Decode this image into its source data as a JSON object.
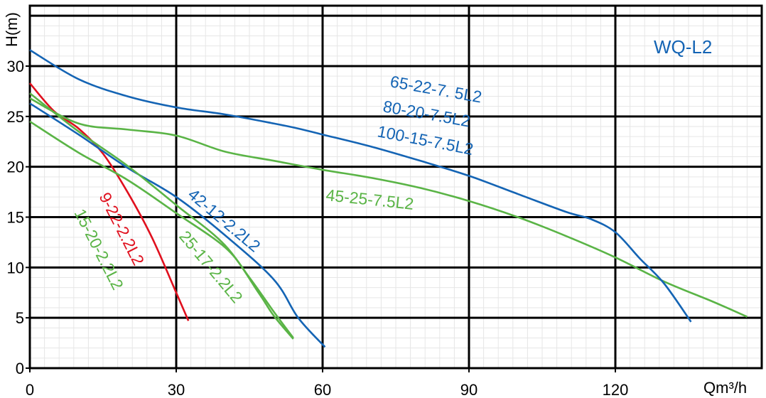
{
  "chart_data": {
    "type": "line",
    "title": "WQ-L2",
    "xlabel": "Qm³/h",
    "ylabel": "H(m)",
    "xlim": [
      0,
      150
    ],
    "ylim": [
      0,
      36
    ],
    "grid": true,
    "x_ticks": [
      "0",
      "30",
      "60",
      "90",
      "120"
    ],
    "y_ticks": [
      "0",
      "5",
      "10",
      "15",
      "20",
      "25",
      "30"
    ],
    "colors": {
      "blue": "#1464b4",
      "green": "#5ab446",
      "red": "#e0101e"
    },
    "series": [
      {
        "name": "9-22-2.2L2",
        "color": "#e0101e",
        "x": [
          0,
          5,
          10,
          15,
          20,
          25,
          30,
          32.5
        ],
        "y": [
          28.3,
          25.5,
          23.8,
          21.3,
          17.5,
          13.0,
          7.5,
          4.7
        ]
      },
      {
        "name": "15-20-2.2L2",
        "color": "#5ab446",
        "x": [
          0,
          10,
          20,
          30,
          40,
          45,
          50,
          54
        ],
        "y": [
          24.5,
          21.4,
          18.7,
          15.4,
          12.0,
          9.0,
          5.6,
          3.0
        ]
      },
      {
        "name": "42-12-2.2L2",
        "color": "#1464b4",
        "x": [
          0,
          10,
          20,
          30,
          40,
          50,
          55,
          60.5
        ],
        "y": [
          26.3,
          23.2,
          19.9,
          17.0,
          13.2,
          8.8,
          5.0,
          2.1
        ]
      },
      {
        "name": "25-17-2.2L2",
        "color": "#5ab446",
        "x": [
          0,
          10,
          20,
          30,
          40,
          47,
          50,
          54
        ],
        "y": [
          27.3,
          23.5,
          20.1,
          16.2,
          12.2,
          7.4,
          5.2,
          2.9
        ]
      },
      {
        "name": "45-25-7.5L2",
        "color": "#5ab446",
        "x": [
          0,
          10,
          20,
          30,
          40,
          50,
          60,
          70,
          80,
          90,
          100,
          110,
          120,
          130,
          140,
          147
        ],
        "y": [
          26.8,
          24.3,
          23.7,
          23.1,
          21.5,
          20.6,
          19.7,
          18.9,
          17.9,
          16.6,
          15.0,
          13.1,
          11.0,
          8.6,
          6.6,
          5.1
        ]
      },
      {
        "name": "65-22-7.5L2",
        "color": "#1464b4",
        "x": [
          0,
          10,
          20,
          30,
          40,
          50,
          55,
          60,
          70,
          80,
          90,
          100,
          110,
          115,
          120,
          125,
          130,
          135.5
        ],
        "y": [
          31.6,
          28.7,
          27.0,
          25.9,
          25.2,
          24.3,
          23.8,
          23.2,
          22.0,
          20.6,
          19.1,
          17.3,
          15.5,
          14.8,
          13.5,
          10.9,
          8.4,
          4.6
        ]
      }
    ],
    "labels": [
      {
        "text": "9-22-2.2L2",
        "series": "9-22-2.2L2"
      },
      {
        "text": "15-20-2.2L2",
        "series": "15-20-2.2L2"
      },
      {
        "text": "42-12-2.2L2",
        "series": "42-12-2.2L2"
      },
      {
        "text": "25-17-2.2L2",
        "series": "25-17-2.2L2"
      },
      {
        "text": "45-25-7.5L2",
        "series": "45-25-7.5L2"
      },
      {
        "text": "65-22-7. 5L2",
        "series": "65-22-7.5L2"
      },
      {
        "text": "80-20-7.5L2",
        "series": "65-22-7.5L2"
      },
      {
        "text": "100-15-7.5L2",
        "series": "65-22-7.5L2"
      }
    ]
  }
}
